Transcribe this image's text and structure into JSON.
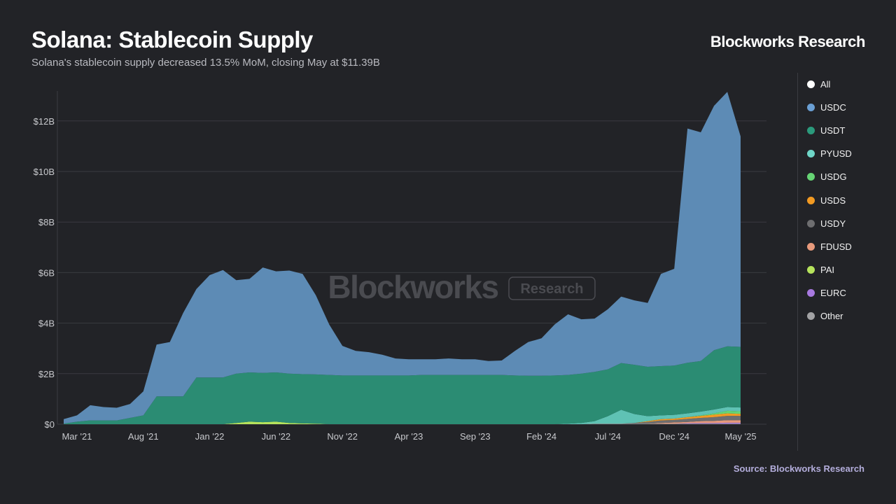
{
  "header": {
    "title": "Solana: Stablecoin Supply",
    "subtitle": "Solana's stablecoin supply decreased 13.5% MoM, closing May at $11.39B",
    "brand": "Blockworks Research"
  },
  "footer": {
    "source": "Source: Blockworks Research"
  },
  "watermark": {
    "main": "Blockworks",
    "badge": "Research"
  },
  "chart_data": {
    "type": "area",
    "stacked": true,
    "title": "Solana: Stablecoin Supply",
    "subtitle": "Solana's stablecoin supply decreased 13.5% MoM, closing May at $11.39B",
    "x": [
      "Feb '21",
      "Mar '21",
      "Apr '21",
      "May '21",
      "Jun '21",
      "Jul '21",
      "Aug '21",
      "Sep '21",
      "Oct '21",
      "Nov '21",
      "Dec '21",
      "Jan '22",
      "Feb '22",
      "Mar '22",
      "Apr '22",
      "May '22",
      "Jun '22",
      "Jul '22",
      "Aug '22",
      "Sep '22",
      "Oct '22",
      "Nov '22",
      "Dec '22",
      "Jan '23",
      "Feb '23",
      "Mar '23",
      "Apr '23",
      "May '23",
      "Jun '23",
      "Jul '23",
      "Aug '23",
      "Sep '23",
      "Oct '23",
      "Nov '23",
      "Dec '23",
      "Jan '24",
      "Feb '24",
      "Mar '24",
      "Apr '24",
      "May '24",
      "Jun '24",
      "Jul '24",
      "Aug '24",
      "Sep '24",
      "Oct '24",
      "Nov '24",
      "Dec '24",
      "Jan '25",
      "Feb '25",
      "Mar '25",
      "Apr '25",
      "May '25"
    ],
    "x_tick_labels": [
      "Mar '21",
      "Aug '21",
      "Jan '22",
      "Jun '22",
      "Nov '22",
      "Apr '23",
      "Sep '23",
      "Feb '24",
      "Jul '24",
      "Dec '24",
      "May '25"
    ],
    "y_tick_labels": [
      "$0",
      "$2B",
      "$4B",
      "$6B",
      "$8B",
      "$10B",
      "$12B"
    ],
    "ylim": [
      0,
      13.2
    ],
    "grid": true,
    "legend_position": "right",
    "legend": [
      {
        "name": "All",
        "color": "#ffffff"
      },
      {
        "name": "USDC",
        "color": "#6a9fd4"
      },
      {
        "name": "USDT",
        "color": "#2b9a7c"
      },
      {
        "name": "PYUSD",
        "color": "#6fd6c8"
      },
      {
        "name": "USDG",
        "color": "#66d474"
      },
      {
        "name": "USDS",
        "color": "#f29a22"
      },
      {
        "name": "USDY",
        "color": "#6e6e70"
      },
      {
        "name": "FDUSD",
        "color": "#e89a7c"
      },
      {
        "name": "PAI",
        "color": "#b6e35c"
      },
      {
        "name": "EURC",
        "color": "#a879e0"
      },
      {
        "name": "Other",
        "color": "#a2a2a4"
      }
    ],
    "series": [
      {
        "name": "Other",
        "color": "#9a9a9c",
        "values": [
          0,
          0,
          0,
          0,
          0,
          0,
          0,
          0,
          0,
          0,
          0,
          0,
          0,
          0,
          0,
          0,
          0,
          0,
          0,
          0,
          0,
          0,
          0,
          0,
          0,
          0,
          0,
          0,
          0,
          0,
          0,
          0,
          0,
          0,
          0,
          0,
          0,
          0,
          0,
          0,
          0.02,
          0.02,
          0.02,
          0.02,
          0.02,
          0.02,
          0.02,
          0.02,
          0.02,
          0.02,
          0.02,
          0.02
        ]
      },
      {
        "name": "EURC",
        "color": "#a879e0",
        "values": [
          0,
          0,
          0,
          0,
          0,
          0,
          0,
          0,
          0,
          0,
          0,
          0,
          0,
          0,
          0,
          0,
          0,
          0,
          0,
          0,
          0,
          0,
          0,
          0,
          0,
          0,
          0,
          0,
          0,
          0,
          0,
          0,
          0,
          0,
          0,
          0,
          0,
          0,
          0,
          0,
          0,
          0,
          0,
          0,
          0,
          0,
          0,
          0.02,
          0.03,
          0.03,
          0.04,
          0.04
        ]
      },
      {
        "name": "PAI",
        "color": "#b6e35c",
        "values": [
          0,
          0,
          0,
          0,
          0,
          0,
          0,
          0,
          0,
          0,
          0,
          0,
          0,
          0.05,
          0.1,
          0.08,
          0.1,
          0.05,
          0.03,
          0.02,
          0,
          0,
          0,
          0,
          0,
          0,
          0,
          0,
          0,
          0,
          0,
          0,
          0,
          0,
          0,
          0,
          0,
          0,
          0,
          0,
          0,
          0,
          0,
          0,
          0,
          0,
          0,
          0,
          0,
          0,
          0,
          0
        ]
      },
      {
        "name": "FDUSD",
        "color": "#e89a7c",
        "values": [
          0,
          0,
          0,
          0,
          0,
          0,
          0,
          0,
          0,
          0,
          0,
          0,
          0,
          0,
          0,
          0,
          0,
          0,
          0,
          0,
          0,
          0,
          0,
          0,
          0,
          0,
          0,
          0,
          0,
          0,
          0,
          0,
          0,
          0,
          0,
          0,
          0,
          0,
          0,
          0,
          0,
          0,
          0,
          0,
          0,
          0.03,
          0.05,
          0.05,
          0.07,
          0.08,
          0.1,
          0.1
        ]
      },
      {
        "name": "USDY",
        "color": "#6e6e70",
        "values": [
          0,
          0,
          0,
          0,
          0,
          0,
          0,
          0,
          0,
          0,
          0,
          0,
          0,
          0,
          0,
          0,
          0,
          0,
          0,
          0,
          0,
          0,
          0,
          0,
          0,
          0,
          0,
          0,
          0,
          0,
          0,
          0,
          0,
          0,
          0,
          0,
          0,
          0,
          0,
          0,
          0,
          0,
          0,
          0.03,
          0.07,
          0.1,
          0.1,
          0.12,
          0.13,
          0.15,
          0.17,
          0.17
        ]
      },
      {
        "name": "USDS",
        "color": "#f29a22",
        "values": [
          0,
          0,
          0,
          0,
          0,
          0,
          0,
          0,
          0,
          0,
          0,
          0,
          0,
          0,
          0,
          0,
          0,
          0,
          0,
          0,
          0,
          0,
          0,
          0,
          0,
          0,
          0,
          0,
          0,
          0,
          0,
          0,
          0,
          0,
          0,
          0,
          0,
          0,
          0,
          0,
          0,
          0,
          0,
          0,
          0.03,
          0.05,
          0.05,
          0.07,
          0.08,
          0.1,
          0.1,
          0.08
        ]
      },
      {
        "name": "USDG",
        "color": "#66d474",
        "values": [
          0,
          0,
          0,
          0,
          0,
          0,
          0,
          0,
          0,
          0,
          0,
          0,
          0,
          0,
          0,
          0,
          0,
          0,
          0,
          0,
          0,
          0,
          0,
          0,
          0,
          0,
          0,
          0,
          0,
          0,
          0,
          0,
          0,
          0,
          0,
          0,
          0,
          0,
          0,
          0,
          0,
          0,
          0,
          0,
          0,
          0,
          0,
          0,
          0.02,
          0.05,
          0.1,
          0.1
        ]
      },
      {
        "name": "PYUSD",
        "color": "#5fc2b4",
        "values": [
          0,
          0,
          0,
          0,
          0,
          0,
          0,
          0,
          0,
          0,
          0,
          0,
          0,
          0,
          0,
          0,
          0,
          0,
          0,
          0,
          0,
          0,
          0,
          0,
          0,
          0,
          0,
          0,
          0,
          0,
          0,
          0,
          0,
          0,
          0,
          0,
          0,
          0,
          0.02,
          0.05,
          0.1,
          0.3,
          0.55,
          0.35,
          0.2,
          0.15,
          0.15,
          0.15,
          0.15,
          0.15,
          0.15,
          0.15
        ]
      },
      {
        "name": "USDT",
        "color": "#2b8c73",
        "values": [
          0.02,
          0.1,
          0.15,
          0.15,
          0.15,
          0.25,
          0.35,
          1.1,
          1.1,
          1.1,
          1.85,
          1.85,
          1.85,
          1.95,
          1.95,
          1.95,
          1.95,
          1.95,
          1.95,
          1.95,
          1.95,
          1.93,
          1.93,
          1.93,
          1.93,
          1.93,
          1.93,
          1.95,
          1.95,
          1.95,
          1.95,
          1.95,
          1.95,
          1.95,
          1.93,
          1.92,
          1.92,
          1.93,
          1.93,
          1.95,
          1.95,
          1.85,
          1.85,
          1.95,
          1.95,
          1.95,
          1.95,
          2.0,
          2.0,
          2.35,
          2.4,
          2.4
        ]
      },
      {
        "name": "USDC",
        "color": "#5d8bb5",
        "values": [
          0.18,
          0.25,
          0.6,
          0.53,
          0.5,
          0.55,
          0.95,
          2.05,
          2.15,
          3.3,
          3.5,
          4.05,
          4.25,
          3.7,
          3.7,
          4.17,
          4.0,
          4.08,
          3.97,
          3.13,
          2.0,
          1.17,
          0.97,
          0.92,
          0.82,
          0.67,
          0.64,
          0.62,
          0.62,
          0.65,
          0.62,
          0.62,
          0.55,
          0.57,
          0.97,
          1.33,
          1.48,
          2.02,
          2.4,
          2.15,
          2.11,
          2.38,
          2.63,
          2.55,
          2.53,
          3.65,
          3.83,
          9.27,
          9.05,
          9.67,
          10.07,
          8.33
        ]
      }
    ]
  }
}
